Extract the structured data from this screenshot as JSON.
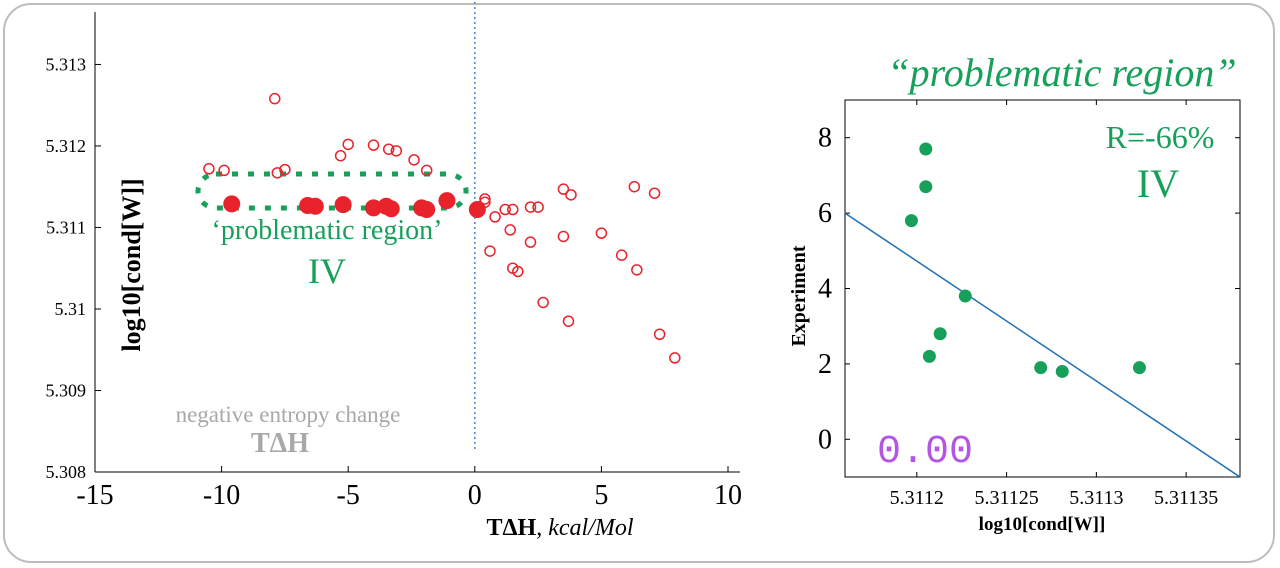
{
  "colors": {
    "scatter": "#e8232b",
    "green": "#17a05a",
    "fit_line": "#1f6fb5",
    "divider": "#4a86c5",
    "gray_text": "#a8a8a8",
    "readout": "#b455e6"
  },
  "chart_data": [
    {
      "type": "scatter",
      "xlabel_bold": "TΔH",
      "xlabel_unit": ", kcal/Mol",
      "ylabel": "log10[cond[W]]",
      "xlim": [
        -15,
        10
      ],
      "ylim": [
        5.308,
        5.3133
      ],
      "xticks": [
        -15,
        -10,
        -5,
        0,
        5,
        10
      ],
      "yticks": [
        5.308,
        5.309,
        5.31,
        5.311,
        5.312,
        5.313
      ],
      "xtick_labels": [
        "-15",
        "-10",
        "-5",
        "0",
        "5",
        "10"
      ],
      "ytick_labels": [
        "5.308",
        "5.309",
        "5.31",
        "5.311",
        "5.312",
        "5.313"
      ],
      "vertical_line_x": 0,
      "annotations": {
        "region_label": "‘problematic region’",
        "region_numeral": "IV",
        "entropy_label": "negative entropy change",
        "entropy_symbol": "TΔH"
      },
      "series": [
        {
          "style": "open",
          "points": [
            [
              -10.5,
              5.31172
            ],
            [
              -9.9,
              5.3117
            ],
            [
              -7.9,
              5.31258
            ],
            [
              -7.8,
              5.31167
            ],
            [
              -7.5,
              5.31171
            ],
            [
              -5.3,
              5.31188
            ],
            [
              -5.0,
              5.31202
            ],
            [
              -4.0,
              5.31201
            ],
            [
              -3.4,
              5.31196
            ],
            [
              -3.1,
              5.31194
            ],
            [
              -2.4,
              5.31183
            ],
            [
              -1.9,
              5.3117
            ],
            [
              0.4,
              5.31135
            ],
            [
              0.4,
              5.31131
            ],
            [
              0.8,
              5.31113
            ],
            [
              1.2,
              5.31122
            ],
            [
              1.4,
              5.31097
            ],
            [
              1.5,
              5.31122
            ],
            [
              2.2,
              5.31125
            ],
            [
              2.5,
              5.31125
            ],
            [
              0.6,
              5.31071
            ],
            [
              1.5,
              5.3105
            ],
            [
              1.7,
              5.31046
            ],
            [
              2.2,
              5.31082
            ],
            [
              3.5,
              5.31147
            ],
            [
              3.8,
              5.3114
            ],
            [
              3.5,
              5.31089
            ],
            [
              5.0,
              5.31093
            ],
            [
              2.7,
              5.31008
            ],
            [
              3.7,
              5.30985
            ],
            [
              5.8,
              5.31066
            ],
            [
              6.3,
              5.3115
            ],
            [
              6.4,
              5.31048
            ],
            [
              7.1,
              5.31142
            ],
            [
              7.3,
              5.30969
            ],
            [
              7.9,
              5.3094
            ]
          ]
        },
        {
          "style": "filled",
          "points": [
            [
              -9.6,
              5.31129
            ],
            [
              -6.6,
              5.31127
            ],
            [
              -6.3,
              5.31126
            ],
            [
              -5.2,
              5.31128
            ],
            [
              -4.0,
              5.31124
            ],
            [
              -3.5,
              5.31126
            ],
            [
              -3.3,
              5.31123
            ],
            [
              -2.1,
              5.31124
            ],
            [
              -1.9,
              5.31122
            ],
            [
              -1.1,
              5.31133
            ],
            [
              0.1,
              5.31122
            ]
          ]
        }
      ]
    },
    {
      "type": "scatter",
      "title": "“problematic region”",
      "xlabel": "log10[cond[W]]",
      "ylabel": "Experiment",
      "xlim": [
        5.31116,
        5.31138
      ],
      "ylim": [
        -1,
        9
      ],
      "xticks": [
        5.3112,
        5.31125,
        5.3113,
        5.31135
      ],
      "yticks": [
        0,
        2,
        4,
        6,
        8
      ],
      "xtick_labels": [
        "5.3112",
        "5.31125",
        "5.3113",
        "5.31135"
      ],
      "ytick_labels": [
        "0",
        "2",
        "4",
        "6",
        "8"
      ],
      "correlation_label": "R=-66%",
      "region_numeral": "IV",
      "readout": "0.00",
      "points": [
        [
          5.311205,
          7.7
        ],
        [
          5.311205,
          6.7
        ],
        [
          5.311197,
          5.8
        ],
        [
          5.311227,
          3.8
        ],
        [
          5.311213,
          2.8
        ],
        [
          5.311207,
          2.2
        ],
        [
          5.311269,
          1.9
        ],
        [
          5.311281,
          1.8
        ],
        [
          5.311324,
          1.9
        ]
      ],
      "fit_line": [
        [
          5.31116,
          6.0
        ],
        [
          5.31138,
          -1.0
        ]
      ]
    }
  ]
}
